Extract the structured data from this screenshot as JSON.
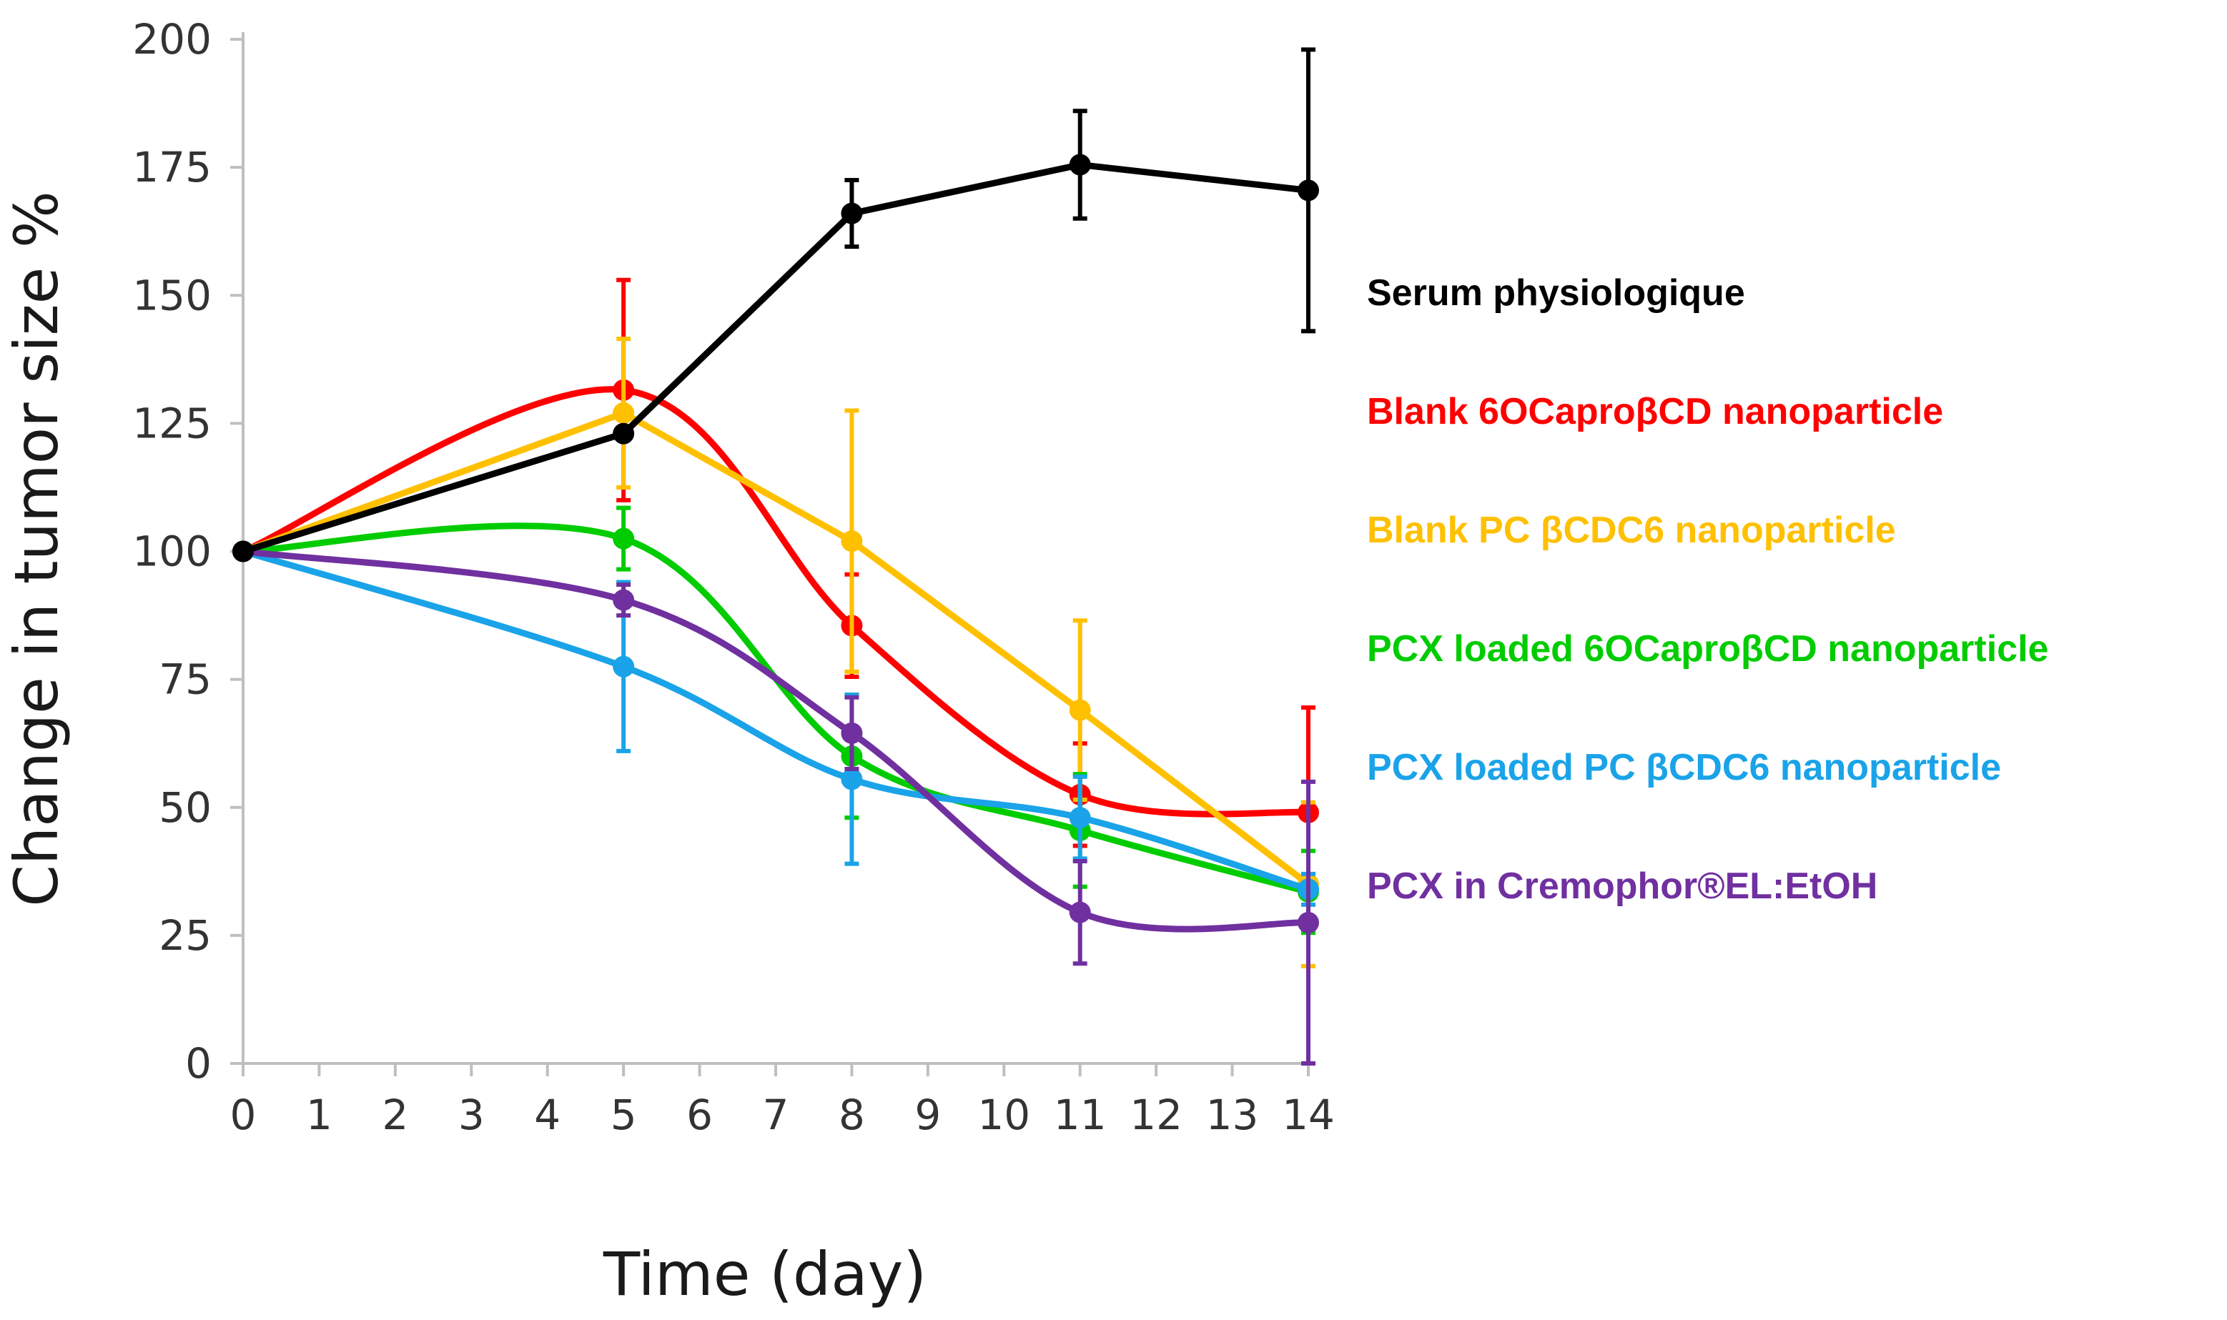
{
  "chart_data": {
    "type": "line",
    "title": "",
    "xlabel": "Time (day)",
    "ylabel": "Change in tumor size %",
    "xlim": [
      0,
      14
    ],
    "ylim": [
      0,
      200
    ],
    "x_ticks": [
      0,
      1,
      2,
      3,
      4,
      5,
      6,
      7,
      8,
      9,
      10,
      11,
      12,
      13,
      14
    ],
    "y_ticks": [
      0,
      25,
      50,
      75,
      100,
      125,
      150,
      175,
      200
    ],
    "grid": false,
    "legend_position": "right",
    "series": [
      {
        "name": "Serum physiologique",
        "color": "#000000",
        "smooth": false,
        "x": [
          0,
          5,
          8,
          11,
          14
        ],
        "values": [
          100,
          123,
          166,
          175.5,
          170.5
        ],
        "errors": [
          0,
          0,
          6.5,
          10.5,
          27.5
        ]
      },
      {
        "name": "Blank 6OCaproβCD nanoparticle",
        "color": "#ff0000",
        "smooth": true,
        "x": [
          0,
          5,
          8,
          11,
          14
        ],
        "values": [
          100,
          131.5,
          85.5,
          52.5,
          49
        ],
        "errors": [
          0,
          21.5,
          10,
          10,
          20.5
        ]
      },
      {
        "name": "Blank PC βCDC6 nanoparticle",
        "color": "#ffc000",
        "smooth": false,
        "x": [
          0,
          5,
          8,
          11,
          14
        ],
        "values": [
          100,
          127,
          102,
          69,
          35
        ],
        "errors": [
          0,
          14.5,
          25.5,
          17.5,
          16
        ]
      },
      {
        "name": "PCX loaded 6OCaproβCD nanoparticle",
        "color": "#00cc00",
        "smooth": true,
        "x": [
          0,
          5,
          8,
          11,
          14
        ],
        "values": [
          100,
          102.5,
          60,
          45.5,
          33.5
        ],
        "errors": [
          0,
          6,
          12,
          11,
          8
        ]
      },
      {
        "name": "PCX loaded PC βCDC6 nanoparticle",
        "color": "#1aa3e8",
        "smooth": true,
        "x": [
          0,
          5,
          8,
          11,
          14
        ],
        "values": [
          100,
          77.5,
          55.5,
          48,
          34
        ],
        "errors": [
          0,
          16.5,
          16.5,
          8,
          3
        ]
      },
      {
        "name": "PCX in Cremophor®EL:EtOH",
        "color": "#7030a0",
        "smooth": true,
        "x": [
          0,
          5,
          8,
          11,
          14
        ],
        "values": [
          100,
          90.5,
          64.5,
          29.5,
          27.5
        ],
        "errors": [
          0,
          3,
          7,
          10,
          27.5
        ]
      }
    ]
  }
}
